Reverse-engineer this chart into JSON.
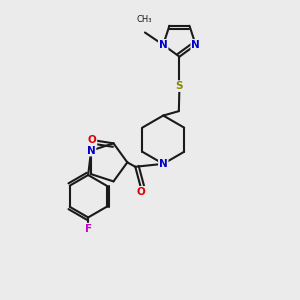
{
  "background_color": "#ebebeb",
  "bond_color": "#1a1a1a",
  "atom_colors": {
    "N": "#0000cc",
    "O": "#dd0000",
    "S": "#888800",
    "F": "#cc00cc",
    "C": "#1a1a1a"
  },
  "figsize": [
    3.0,
    3.0
  ],
  "dpi": 100
}
